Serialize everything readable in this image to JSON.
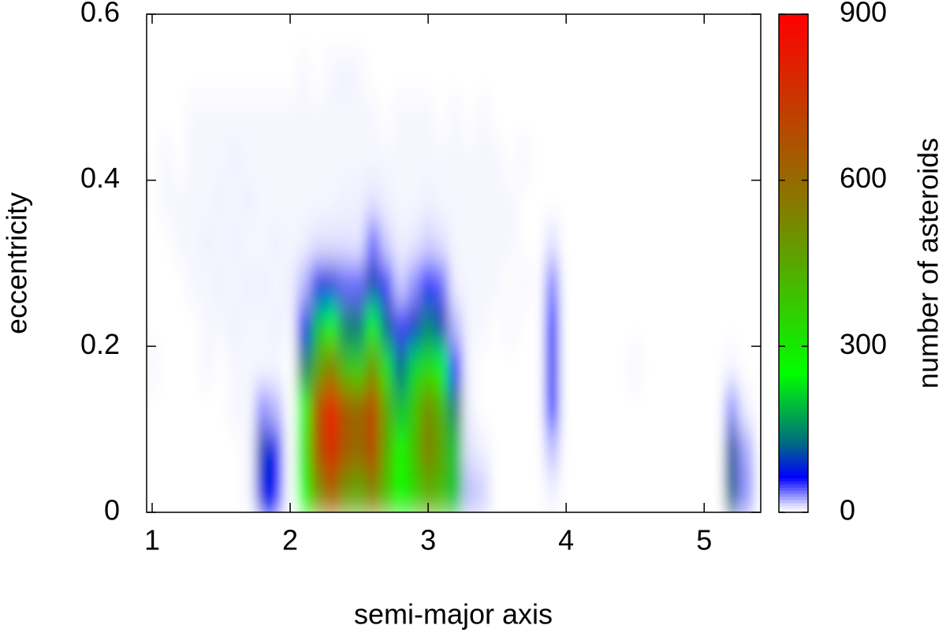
{
  "chart_data": {
    "type": "heatmap",
    "xlabel": "semi-major axis",
    "ylabel": "eccentricity",
    "colorbar_label": "number of asteroids",
    "x": [
      1.0,
      1.1,
      1.2,
      1.3,
      1.4,
      1.5,
      1.6,
      1.7,
      1.8,
      1.9,
      2.0,
      2.1,
      2.2,
      2.3,
      2.4,
      2.5,
      2.6,
      2.7,
      2.8,
      2.9,
      3.0,
      3.1,
      3.2,
      3.3,
      3.4,
      3.5,
      3.6,
      3.7,
      3.8,
      3.9,
      4.0,
      4.1,
      4.2,
      4.3,
      4.4,
      4.5,
      4.6,
      4.7,
      4.8,
      4.9,
      5.0,
      5.1,
      5.2,
      5.3
    ],
    "y": [
      0.025,
      0.075,
      0.125,
      0.175,
      0.225,
      0.275,
      0.325,
      0.375,
      0.425,
      0.475,
      0.525,
      0.575
    ],
    "z": [
      [
        0,
        0,
        0,
        0,
        0,
        0,
        0,
        3,
        80,
        60,
        0,
        250,
        500,
        650,
        500,
        450,
        550,
        400,
        250,
        350,
        450,
        400,
        200,
        20,
        15,
        0,
        0,
        0,
        0,
        5,
        0,
        0,
        0,
        0,
        0,
        0,
        0,
        0,
        0,
        0,
        0,
        0,
        120,
        30
      ],
      [
        0,
        0,
        0,
        0,
        0,
        0,
        0,
        3,
        100,
        70,
        0,
        300,
        650,
        800,
        650,
        600,
        700,
        450,
        250,
        400,
        550,
        450,
        200,
        10,
        5,
        0,
        0,
        0,
        0,
        20,
        0,
        0,
        0,
        0,
        0,
        0,
        0,
        0,
        0,
        0,
        0,
        0,
        110,
        25
      ],
      [
        0,
        0,
        0,
        0,
        0,
        0,
        3,
        3,
        30,
        20,
        0,
        250,
        650,
        850,
        650,
        600,
        720,
        450,
        200,
        380,
        520,
        420,
        150,
        5,
        0,
        0,
        0,
        0,
        0,
        60,
        0,
        0,
        0,
        0,
        0,
        0,
        0,
        0,
        0,
        0,
        0,
        0,
        30,
        5
      ],
      [
        3,
        0,
        0,
        0,
        3,
        0,
        3,
        3,
        3,
        3,
        0,
        150,
        450,
        550,
        400,
        350,
        500,
        300,
        120,
        220,
        330,
        260,
        60,
        3,
        0,
        0,
        0,
        0,
        0,
        70,
        0,
        0,
        0,
        0,
        0,
        3,
        0,
        0,
        0,
        0,
        0,
        0,
        3,
        0
      ],
      [
        0,
        0,
        0,
        0,
        3,
        3,
        5,
        3,
        3,
        5,
        3,
        70,
        200,
        250,
        150,
        130,
        250,
        120,
        50,
        90,
        150,
        100,
        20,
        3,
        3,
        0,
        3,
        0,
        0,
        60,
        0,
        0,
        0,
        0,
        0,
        0,
        0,
        0,
        0,
        0,
        0,
        0,
        0,
        0
      ],
      [
        0,
        0,
        0,
        3,
        3,
        5,
        3,
        5,
        5,
        3,
        5,
        20,
        70,
        80,
        40,
        40,
        100,
        50,
        15,
        30,
        60,
        40,
        5,
        3,
        3,
        3,
        0,
        3,
        0,
        35,
        0,
        0,
        0,
        0,
        0,
        0,
        0,
        0,
        0,
        0,
        0,
        0,
        0,
        0
      ],
      [
        0,
        0,
        3,
        3,
        5,
        3,
        5,
        3,
        3,
        5,
        3,
        5,
        10,
        10,
        10,
        8,
        40,
        15,
        5,
        8,
        15,
        10,
        3,
        3,
        3,
        3,
        3,
        0,
        0,
        10,
        0,
        0,
        0,
        0,
        0,
        0,
        0,
        0,
        0,
        0,
        0,
        0,
        0,
        0
      ],
      [
        0,
        3,
        3,
        3,
        3,
        5,
        3,
        5,
        3,
        3,
        3,
        3,
        3,
        3,
        5,
        5,
        10,
        5,
        3,
        3,
        5,
        3,
        3,
        3,
        3,
        3,
        3,
        0,
        0,
        0,
        0,
        0,
        0,
        0,
        0,
        0,
        0,
        0,
        0,
        0,
        0,
        0,
        0,
        0
      ],
      [
        0,
        3,
        0,
        3,
        3,
        3,
        5,
        3,
        3,
        3,
        3,
        3,
        3,
        3,
        3,
        3,
        3,
        3,
        3,
        3,
        3,
        3,
        3,
        3,
        3,
        3,
        0,
        3,
        0,
        0,
        0,
        0,
        0,
        0,
        0,
        0,
        0,
        0,
        0,
        0,
        0,
        0,
        0,
        0
      ],
      [
        0,
        0,
        0,
        3,
        3,
        3,
        3,
        3,
        3,
        3,
        3,
        3,
        3,
        3,
        3,
        3,
        3,
        0,
        3,
        3,
        3,
        0,
        3,
        0,
        3,
        0,
        0,
        0,
        0,
        0,
        0,
        0,
        0,
        0,
        0,
        0,
        0,
        0,
        0,
        0,
        0,
        0,
        0,
        0
      ],
      [
        0,
        0,
        0,
        0,
        0,
        0,
        0,
        0,
        0,
        0,
        0,
        3,
        0,
        3,
        5,
        3,
        0,
        0,
        0,
        0,
        0,
        0,
        0,
        0,
        0,
        0,
        0,
        0,
        0,
        0,
        0,
        0,
        0,
        0,
        0,
        0,
        0,
        0,
        0,
        0,
        0,
        0,
        0,
        0
      ],
      [
        0,
        0,
        0,
        0,
        0,
        0,
        0,
        0,
        0,
        0,
        0,
        0,
        0,
        0,
        0,
        0,
        0,
        0,
        0,
        0,
        0,
        0,
        0,
        0,
        0,
        0,
        0,
        0,
        0,
        0,
        0,
        0,
        0,
        0,
        0,
        0,
        0,
        0,
        0,
        0,
        0,
        0,
        0,
        0
      ]
    ],
    "xlim": [
      0.96,
      5.41
    ],
    "ylim": [
      0,
      0.6
    ],
    "zlim": [
      0,
      900
    ],
    "xticks": [
      1,
      2,
      3,
      4,
      5
    ],
    "yticks": [
      0,
      0.2,
      0.4,
      0.6
    ],
    "zticks": [
      0,
      300,
      600,
      900
    ],
    "colorscale": [
      "#ffffff",
      "#d8d8ff",
      "#0000ff",
      "#006c80",
      "#00ff00",
      "#808000",
      "#ff0000"
    ],
    "grid": false
  }
}
